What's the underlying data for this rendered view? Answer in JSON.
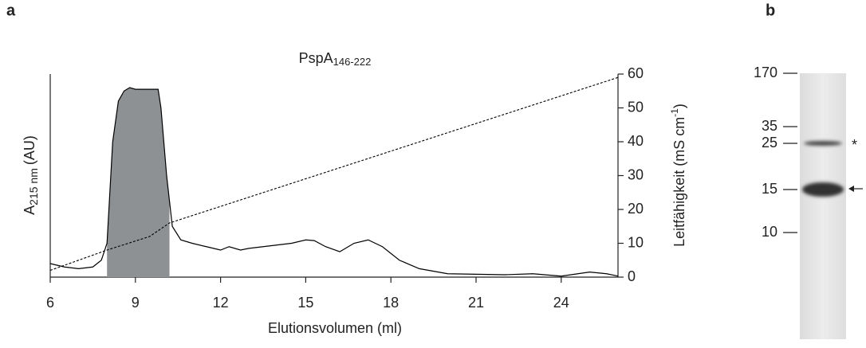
{
  "chart_data": {
    "type": "line",
    "panel": "a",
    "title": {
      "main": "PspA",
      "sub": "146-222"
    },
    "x_label": "Elutionsvolumen (ml)",
    "y_label": {
      "main": "A",
      "sub": "215 nm",
      "unit": "(AU)"
    },
    "y2_label": {
      "main": "Leitfähigkeit (mS cm",
      "sup": "-1",
      "end": ")"
    },
    "xlim": [
      6,
      26
    ],
    "xticks": [
      6,
      9,
      12,
      15,
      18,
      21,
      24
    ],
    "ylim": [
      0,
      60
    ],
    "y2lim": [
      0,
      60
    ],
    "y2ticks": [
      0,
      10,
      20,
      30,
      40,
      50,
      60
    ],
    "shade": [
      8,
      10.2
    ],
    "shade_color": "#8e9194",
    "series": [
      {
        "color": "#000000",
        "axis": "y",
        "dash": false,
        "x": [
          6,
          6.5,
          7,
          7.5,
          7.8,
          8,
          8.2,
          8.4,
          8.6,
          8.8,
          9,
          9.5,
          9.8,
          9.9,
          10.1,
          10.3,
          10.6,
          11,
          11.5,
          12,
          12.3,
          12.7,
          13,
          13.5,
          14,
          14.5,
          15,
          15.3,
          15.7,
          16.2,
          16.7,
          17.2,
          17.7,
          18.3,
          19,
          20,
          22,
          23,
          24,
          25,
          25.6,
          26
        ],
        "values": [
          4,
          3,
          2.5,
          3,
          5,
          10,
          40,
          52,
          55,
          56,
          55.5,
          55.5,
          55.5,
          50,
          30,
          15,
          11,
          10,
          9,
          8,
          9,
          8,
          8.5,
          9,
          9.5,
          10,
          11,
          10.8,
          9,
          7.5,
          10,
          11,
          9,
          5,
          2.5,
          1,
          0.7,
          1,
          0.3,
          1.5,
          1,
          0.3
        ]
      },
      {
        "color": "#000000",
        "axis": "y2",
        "dash": true,
        "x": [
          6,
          8,
          9.5,
          10.2,
          26
        ],
        "values": [
          2,
          8,
          12,
          16,
          59
        ]
      }
    ]
  },
  "gel": {
    "panel": "b",
    "markers": [
      "170",
      "35",
      "25",
      "15",
      "10"
    ],
    "star": "*"
  }
}
